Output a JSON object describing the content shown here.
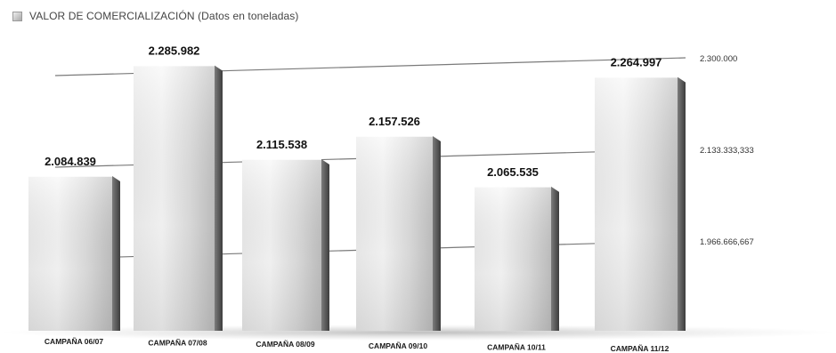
{
  "chart_data": {
    "type": "bar",
    "legend": {
      "label": "VALOR DE COMERCIALIZACIÓN (Datos en toneladas)",
      "position": "top-left"
    },
    "categories": [
      "CAMPAÑA 06/07",
      "CAMPAÑA 07/08",
      "CAMPAÑA 08/09",
      "CAMPAÑA 09/10",
      "CAMPAÑA 10/11",
      "CAMPAÑA 11/12"
    ],
    "values": [
      2084839,
      2285982,
      2115538,
      2157526,
      2065535,
      2264997
    ],
    "value_labels": [
      "2.084.839",
      "2.285.982",
      "2.115.538",
      "2.157.526",
      "2.065.535",
      "2.264.997"
    ],
    "y_ticks": [
      {
        "value": 2300000,
        "label": "2.300.000"
      },
      {
        "value": 2133333.333,
        "label": "2.133.333,333"
      },
      {
        "value": 1966666.667,
        "label": "1.966.666,667"
      }
    ],
    "grid": true,
    "colors": {
      "bar_light": "#f3f3f3",
      "bar_mid": "#cfcfcf",
      "bar_dark": "#5a5a5a",
      "grid": "#7a7a7a",
      "text": "#111111"
    }
  }
}
